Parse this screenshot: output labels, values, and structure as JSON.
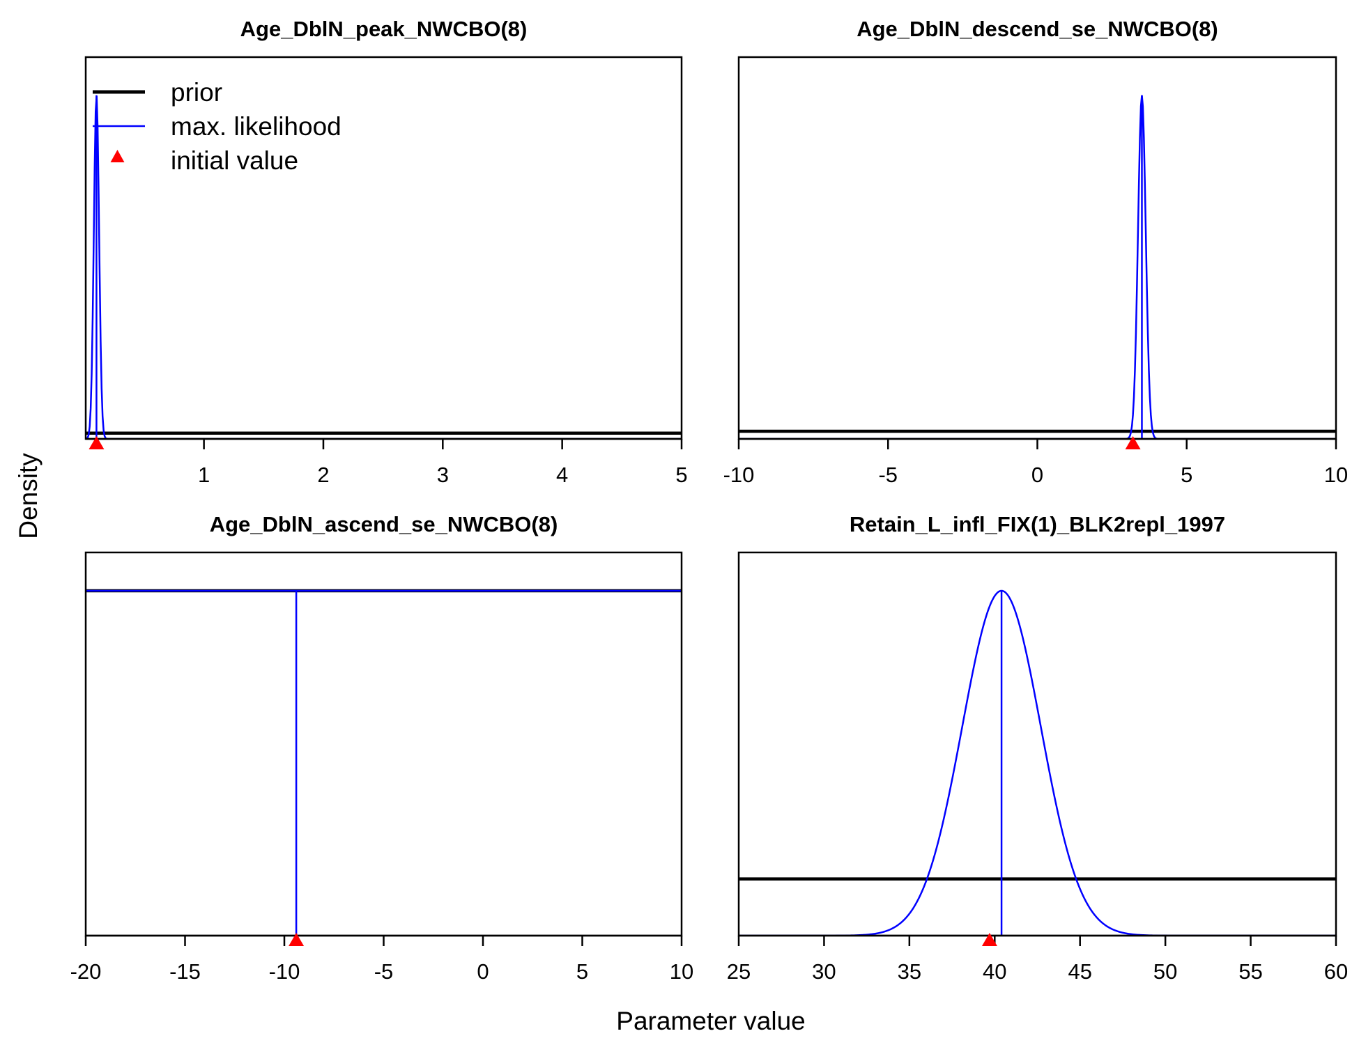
{
  "figure": {
    "ylabel": "Density",
    "xlabel": "Parameter value"
  },
  "legend": {
    "placement": "top-left of first panel",
    "items": [
      {
        "label": "prior",
        "color": "#000000",
        "kind": "line-thick"
      },
      {
        "label": "max. likelihood",
        "color": "#0000ff",
        "kind": "line-thin"
      },
      {
        "label": "initial value",
        "color": "#ff0000",
        "kind": "triangle"
      }
    ]
  },
  "colors": {
    "prior": "#000000",
    "mle": "#0000ff",
    "initial": "#ff0000"
  },
  "chart_data": [
    {
      "type": "line",
      "title": "Age_DblN_peak_NWCBO(8)",
      "xlim": [
        0.01,
        5
      ],
      "xticks": [
        1,
        2,
        3,
        4,
        5
      ],
      "ylim": [
        0,
        1
      ],
      "prior_level": 0.015,
      "mle": {
        "mean": 0.1,
        "sd": 0.022,
        "peak": 0.9
      },
      "initial_value": 0.1
    },
    {
      "type": "line",
      "title": "Age_DblN_descend_se_NWCBO(8)",
      "xlim": [
        -10,
        10
      ],
      "xticks": [
        -10,
        -5,
        0,
        5,
        10
      ],
      "ylim": [
        0,
        1
      ],
      "prior_level": 0.02,
      "mle": {
        "mean": 3.5,
        "sd": 0.13,
        "peak": 0.9
      },
      "initial_value": 3.2
    },
    {
      "type": "line",
      "title": "Age_DblN_ascend_se_NWCBO(8)",
      "xlim": [
        -20,
        10
      ],
      "xticks": [
        -20,
        -15,
        -10,
        -5,
        0,
        5,
        10
      ],
      "ylim": [
        0,
        1
      ],
      "prior_level": 0.9,
      "mle": {
        "mean": -9.4,
        "sd": 0,
        "peak": 0.9
      },
      "initial_value": -9.4
    },
    {
      "type": "line",
      "title": "Retain_L_infl_FIX(1)_BLK2repl_1997",
      "xlim": [
        25,
        60
      ],
      "xticks": [
        25,
        30,
        35,
        40,
        45,
        50,
        55,
        60
      ],
      "ylim": [
        0,
        1
      ],
      "prior_level": 0.148,
      "mle": {
        "mean": 40.4,
        "sd": 2.3,
        "peak": 0.9
      },
      "initial_value": 39.7
    }
  ]
}
